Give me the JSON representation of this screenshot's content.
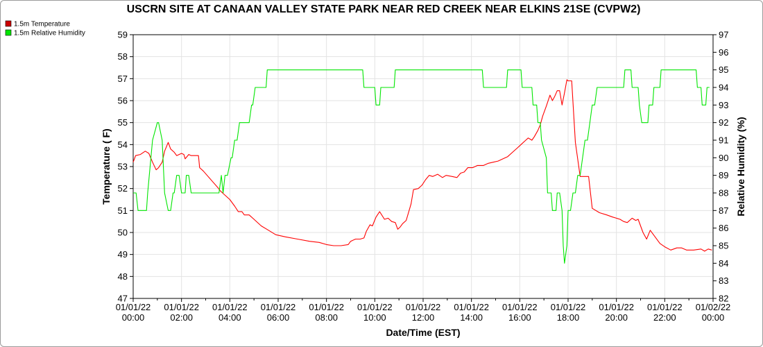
{
  "chart_data": {
    "type": "line",
    "title": "USCRN SITE AT CANAAN VALLEY STATE PARK NEAR RED CREEK NEAR ELKINS 21SE (CVPW2)",
    "xlabel": "Date/Time (EST)",
    "ylabel_left": "Temperature ( F)",
    "ylabel_right": "Relative Humidity (%)",
    "ylim_left": [
      47,
      59
    ],
    "ylim_right": [
      82,
      97
    ],
    "xlim_hours": [
      0,
      24
    ],
    "grid": true,
    "legend_position": "top-left",
    "x_tick_labels": [
      {
        "date": "01/01/22",
        "time": "00:00"
      },
      {
        "date": "01/01/22",
        "time": "02:00"
      },
      {
        "date": "01/01/22",
        "time": "04:00"
      },
      {
        "date": "01/01/22",
        "time": "06:00"
      },
      {
        "date": "01/01/22",
        "time": "08:00"
      },
      {
        "date": "01/01/22",
        "time": "10:00"
      },
      {
        "date": "01/01/22",
        "time": "12:00"
      },
      {
        "date": "01/01/22",
        "time": "14:00"
      },
      {
        "date": "01/01/22",
        "time": "16:00"
      },
      {
        "date": "01/01/22",
        "time": "18:00"
      },
      {
        "date": "01/01/22",
        "time": "20:00"
      },
      {
        "date": "01/01/22",
        "time": "22:00"
      },
      {
        "date": "01/02/22",
        "time": "00:00"
      }
    ],
    "y_left_ticks": [
      47,
      48,
      49,
      50,
      51,
      52,
      53,
      54,
      55,
      56,
      57,
      58,
      59
    ],
    "y_right_ticks": [
      82,
      83,
      84,
      85,
      86,
      87,
      88,
      89,
      90,
      91,
      92,
      93,
      94,
      95,
      96,
      97
    ],
    "series": [
      {
        "name": "1.5m Temperature",
        "axis": "left",
        "color": "#ff0000",
        "x": [
          0.0,
          0.1,
          0.3,
          0.5,
          0.65,
          0.8,
          0.95,
          1.05,
          1.2,
          1.3,
          1.45,
          1.55,
          1.7,
          1.8,
          1.9,
          2.0,
          2.1,
          2.15,
          2.3,
          2.4,
          2.7,
          2.75,
          2.9,
          3.1,
          3.3,
          3.5,
          3.6,
          3.75,
          4.0,
          4.2,
          4.35,
          4.5,
          4.6,
          4.8,
          5.0,
          5.3,
          5.6,
          5.9,
          6.3,
          6.8,
          7.3,
          7.7,
          8.0,
          8.3,
          8.6,
          8.9,
          9.0,
          9.2,
          9.4,
          9.55,
          9.65,
          9.8,
          9.9,
          10.05,
          10.2,
          10.4,
          10.55,
          10.7,
          10.85,
          10.95,
          11.05,
          11.15,
          11.3,
          11.5,
          11.6,
          11.8,
          11.95,
          12.1,
          12.25,
          12.4,
          12.6,
          12.8,
          12.95,
          13.2,
          13.4,
          13.55,
          13.7,
          13.85,
          14.05,
          14.25,
          14.5,
          14.7,
          14.9,
          15.1,
          15.3,
          15.5,
          15.7,
          15.9,
          16.05,
          16.25,
          16.35,
          16.5,
          16.6,
          16.75,
          16.85,
          16.95,
          17.1,
          17.25,
          17.35,
          17.45,
          17.55,
          17.65,
          17.75,
          17.85,
          17.95,
          18.0,
          18.15,
          18.3,
          18.5,
          18.7,
          18.85,
          19.0,
          19.3,
          19.6,
          19.85,
          20.0,
          20.15,
          20.3,
          20.45,
          20.65,
          20.8,
          20.9,
          21.0,
          21.1,
          21.25,
          21.4,
          21.6,
          21.8,
          22.0,
          22.25,
          22.5,
          22.7,
          22.9,
          23.2,
          23.5,
          23.65,
          23.8,
          23.95
        ],
        "y": [
          53.2,
          53.5,
          53.55,
          53.7,
          53.6,
          53.2,
          52.85,
          52.95,
          53.2,
          53.7,
          54.1,
          53.8,
          53.65,
          53.5,
          53.55,
          53.6,
          53.55,
          53.35,
          53.55,
          53.5,
          53.5,
          52.95,
          52.8,
          52.55,
          52.3,
          52.05,
          51.9,
          51.75,
          51.5,
          51.2,
          50.95,
          50.95,
          50.8,
          50.8,
          50.6,
          50.3,
          50.1,
          49.9,
          49.8,
          49.7,
          49.6,
          49.55,
          49.45,
          49.4,
          49.4,
          49.45,
          49.6,
          49.7,
          49.7,
          49.75,
          50.05,
          50.35,
          50.3,
          50.7,
          50.95,
          50.6,
          50.65,
          50.5,
          50.45,
          50.15,
          50.25,
          50.4,
          50.55,
          51.3,
          51.95,
          52.0,
          52.15,
          52.4,
          52.6,
          52.55,
          52.65,
          52.5,
          52.6,
          52.55,
          52.5,
          52.7,
          52.75,
          52.95,
          52.95,
          53.05,
          53.05,
          53.15,
          53.2,
          53.25,
          53.35,
          53.45,
          53.65,
          53.85,
          54.0,
          54.2,
          54.3,
          54.2,
          54.35,
          54.65,
          54.9,
          55.3,
          55.75,
          56.25,
          56.0,
          56.2,
          56.45,
          56.45,
          55.8,
          56.35,
          56.95,
          56.9,
          56.9,
          54.1,
          52.55,
          52.55,
          52.55,
          51.1,
          50.9,
          50.8,
          50.7,
          50.65,
          50.6,
          50.5,
          50.45,
          50.65,
          50.55,
          50.6,
          50.3,
          50.0,
          49.7,
          50.1,
          49.8,
          49.5,
          49.35,
          49.2,
          49.3,
          49.3,
          49.2,
          49.2,
          49.25,
          49.15,
          49.25,
          49.2
        ]
      },
      {
        "name": "1.5m Relative Humidity",
        "axis": "right",
        "color": "#00e600",
        "x": [
          0.0,
          0.12,
          0.2,
          0.55,
          0.6,
          0.8,
          1.0,
          1.05,
          1.2,
          1.3,
          1.45,
          1.55,
          1.65,
          1.7,
          1.8,
          1.9,
          2.0,
          2.15,
          2.2,
          2.3,
          2.4,
          2.5,
          2.9,
          3.0,
          3.5,
          3.55,
          3.65,
          3.72,
          3.8,
          3.9,
          4.05,
          4.1,
          4.2,
          4.3,
          4.4,
          4.45,
          4.6,
          4.7,
          4.8,
          4.9,
          4.95,
          5.05,
          5.2,
          5.5,
          5.55,
          9.5,
          9.55,
          10.0,
          10.05,
          10.2,
          10.25,
          10.8,
          10.85,
          14.45,
          14.5,
          15.45,
          15.5,
          16.05,
          16.1,
          16.5,
          16.55,
          16.7,
          16.75,
          16.85,
          16.9,
          17.1,
          17.15,
          17.3,
          17.35,
          17.5,
          17.55,
          17.65,
          17.75,
          17.8,
          17.85,
          17.95,
          18.0,
          18.1,
          18.2,
          18.3,
          18.4,
          18.5,
          18.6,
          18.7,
          18.8,
          18.9,
          19.0,
          19.1,
          19.2,
          19.45,
          19.5,
          20.3,
          20.35,
          20.6,
          20.65,
          20.9,
          20.95,
          21.05,
          21.1,
          21.3,
          21.35,
          21.5,
          21.55,
          21.8,
          21.85,
          22.0,
          22.05,
          22.1,
          22.2,
          22.25,
          23.3,
          23.35,
          23.5,
          23.55,
          23.7,
          23.75,
          23.85
        ],
        "y": [
          88,
          88,
          87,
          87,
          88,
          91,
          92,
          92,
          91,
          88,
          87,
          87,
          88,
          88,
          89,
          89,
          88,
          88,
          89,
          89,
          88,
          88,
          88,
          88,
          88,
          88,
          89,
          88,
          89,
          89,
          90,
          90,
          91,
          91,
          92,
          92,
          92,
          92,
          92,
          93,
          93,
          94,
          94,
          94,
          95,
          95,
          94,
          94,
          93,
          93,
          94,
          94,
          95,
          95,
          94,
          94,
          95,
          95,
          94,
          94,
          93,
          93,
          92,
          92,
          91,
          90,
          88,
          88,
          87,
          87,
          88,
          88,
          87,
          85,
          84,
          85,
          87,
          87,
          88,
          88,
          89,
          89,
          90,
          91,
          91,
          92,
          93,
          93,
          94,
          94,
          94,
          94,
          95,
          95,
          94,
          94,
          93,
          92,
          92,
          92,
          93,
          93,
          94,
          94,
          95,
          95,
          95,
          95,
          95,
          95,
          95,
          94,
          94,
          93,
          93,
          94,
          94
        ]
      }
    ]
  }
}
